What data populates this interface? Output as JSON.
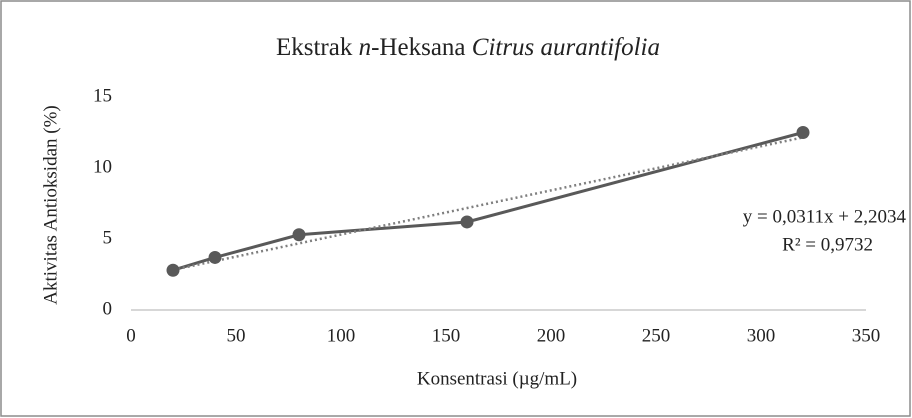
{
  "chart_data": {
    "type": "line",
    "title_parts": [
      {
        "text": "Ekstrak ",
        "italic": false
      },
      {
        "text": "n",
        "italic": true
      },
      {
        "text": "-Heksana ",
        "italic": false
      },
      {
        "text": "Citrus aurantifolia",
        "italic": true
      }
    ],
    "x_label": "Konsentrasi (µg/mL)",
    "y_label": "Aktivitas Antioksidan (%)",
    "x": [
      20,
      40,
      80,
      160,
      320
    ],
    "series": [
      {
        "name": "Ekstrak n-Heksana",
        "color": "#595959",
        "values": [
          2.8,
          3.7,
          5.3,
          6.2,
          12.5
        ]
      }
    ],
    "trendline": {
      "slope": 0.0311,
      "intercept": 2.2034,
      "color": "#7f7f7f",
      "equation": "y = 0,0311x + 2,2034",
      "r_squared": "R² = 0,9732"
    },
    "xlim": [
      0,
      350
    ],
    "xticks": [
      0,
      50,
      100,
      150,
      200,
      250,
      300,
      350
    ],
    "ylim": [
      0,
      15
    ],
    "yticks": [
      0,
      5,
      10,
      15
    ],
    "grid": false
  }
}
